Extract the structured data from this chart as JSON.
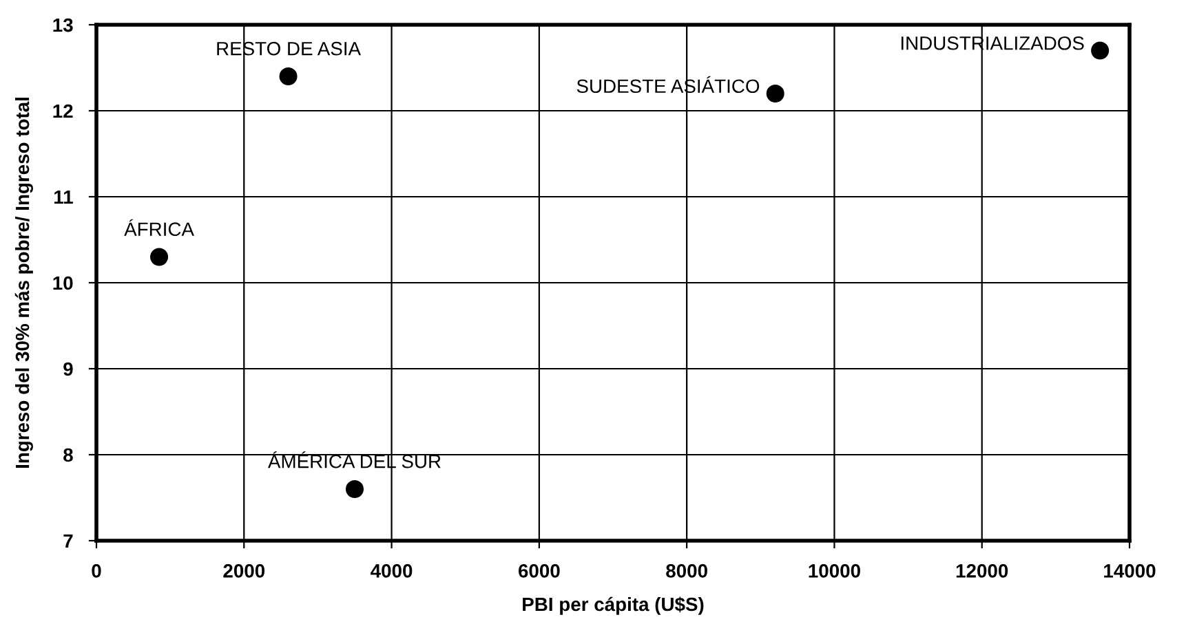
{
  "chart_data": {
    "type": "scatter",
    "xlabel": "PBI per cápita (U$S)",
    "ylabel": "Ingreso del 30% más pobre/ Ingreso total",
    "x": [
      850,
      2600,
      3500,
      9200,
      13600
    ],
    "series": [
      {
        "color": "#000000",
        "values": [
          10.3,
          12.4,
          7.6,
          12.2,
          12.7
        ]
      }
    ],
    "annotations": [
      {
        "text": "ÁFRICA",
        "x": 850,
        "y": 10.3
      },
      {
        "text": "RESTO DE ASIA",
        "x": 2600,
        "y": 12.4
      },
      {
        "text": "ÁMÉRICA DEL SUR",
        "x": 3500,
        "y": 7.6
      },
      {
        "text": "SUDESTE ASIÁTICO",
        "x": 9200,
        "y": 12.2
      },
      {
        "text": "INDUSTRIALIZADOS",
        "x": 13600,
        "y": 12.7
      }
    ],
    "xlim": [
      0,
      14000
    ],
    "xticks": [
      0,
      2000,
      4000,
      6000,
      8000,
      10000,
      12000,
      14000
    ],
    "ylim": [
      7,
      13
    ],
    "yticks": [
      7,
      8,
      9,
      10,
      11,
      12,
      13
    ],
    "grid": true,
    "marker": "circle"
  }
}
